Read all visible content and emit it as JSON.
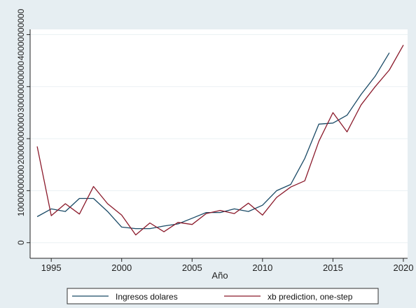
{
  "chart_data": {
    "type": "line",
    "title": "",
    "xlabel": "Año",
    "ylabel": "",
    "xlim": [
      1993.5,
      2020.3
    ],
    "ylim": [
      -3000000000,
      41000000000
    ],
    "xticks": [
      1995,
      2000,
      2005,
      2010,
      2015,
      2020
    ],
    "xtick_labels": [
      "1995",
      "2000",
      "2005",
      "2010",
      "2015",
      "2020"
    ],
    "yticks": [
      0,
      10000000000,
      20000000000,
      30000000000,
      40000000000
    ],
    "ytick_labels": [
      "0",
      "10000000000",
      "20000000000",
      "30000000000",
      "40000000000"
    ],
    "grid": true,
    "legend_position": "bottom",
    "series": [
      {
        "name": "Ingresos dolares",
        "color": "#1a4a66",
        "x": [
          1994,
          1995,
          1996,
          1997,
          1998,
          1999,
          2000,
          2001,
          2002,
          2003,
          2004,
          2005,
          2006,
          2007,
          2008,
          2009,
          2010,
          2011,
          2012,
          2013,
          2014,
          2015,
          2016,
          2017,
          2018,
          2019
        ],
        "y": [
          5000000000,
          6500000000,
          6000000000,
          8500000000,
          8500000000,
          6000000000,
          3000000000,
          2700000000,
          2700000000,
          3200000000,
          3600000000,
          4700000000,
          5800000000,
          5800000000,
          6500000000,
          6000000000,
          7200000000,
          10000000000,
          11200000000,
          16200000000,
          22800000000,
          23000000000,
          24500000000,
          28500000000,
          32000000000,
          36500000000
        ]
      },
      {
        "name": "xb prediction, one-step",
        "color": "#8b1a2b",
        "x": [
          1994,
          1995,
          1996,
          1997,
          1998,
          1999,
          2000,
          2001,
          2002,
          2003,
          2004,
          2005,
          2006,
          2007,
          2008,
          2009,
          2010,
          2011,
          2012,
          2013,
          2014,
          2015,
          2016,
          2017,
          2018,
          2019,
          2020
        ],
        "y": [
          18500000000,
          5200000000,
          7500000000,
          5500000000,
          10800000000,
          7500000000,
          5300000000,
          1500000000,
          3800000000,
          2100000000,
          3900000000,
          3500000000,
          5600000000,
          6200000000,
          5600000000,
          7600000000,
          5300000000,
          8700000000,
          10700000000,
          11900000000,
          19500000000,
          25000000000,
          21300000000,
          26500000000,
          30000000000,
          33200000000,
          38000000000
        ]
      }
    ]
  }
}
